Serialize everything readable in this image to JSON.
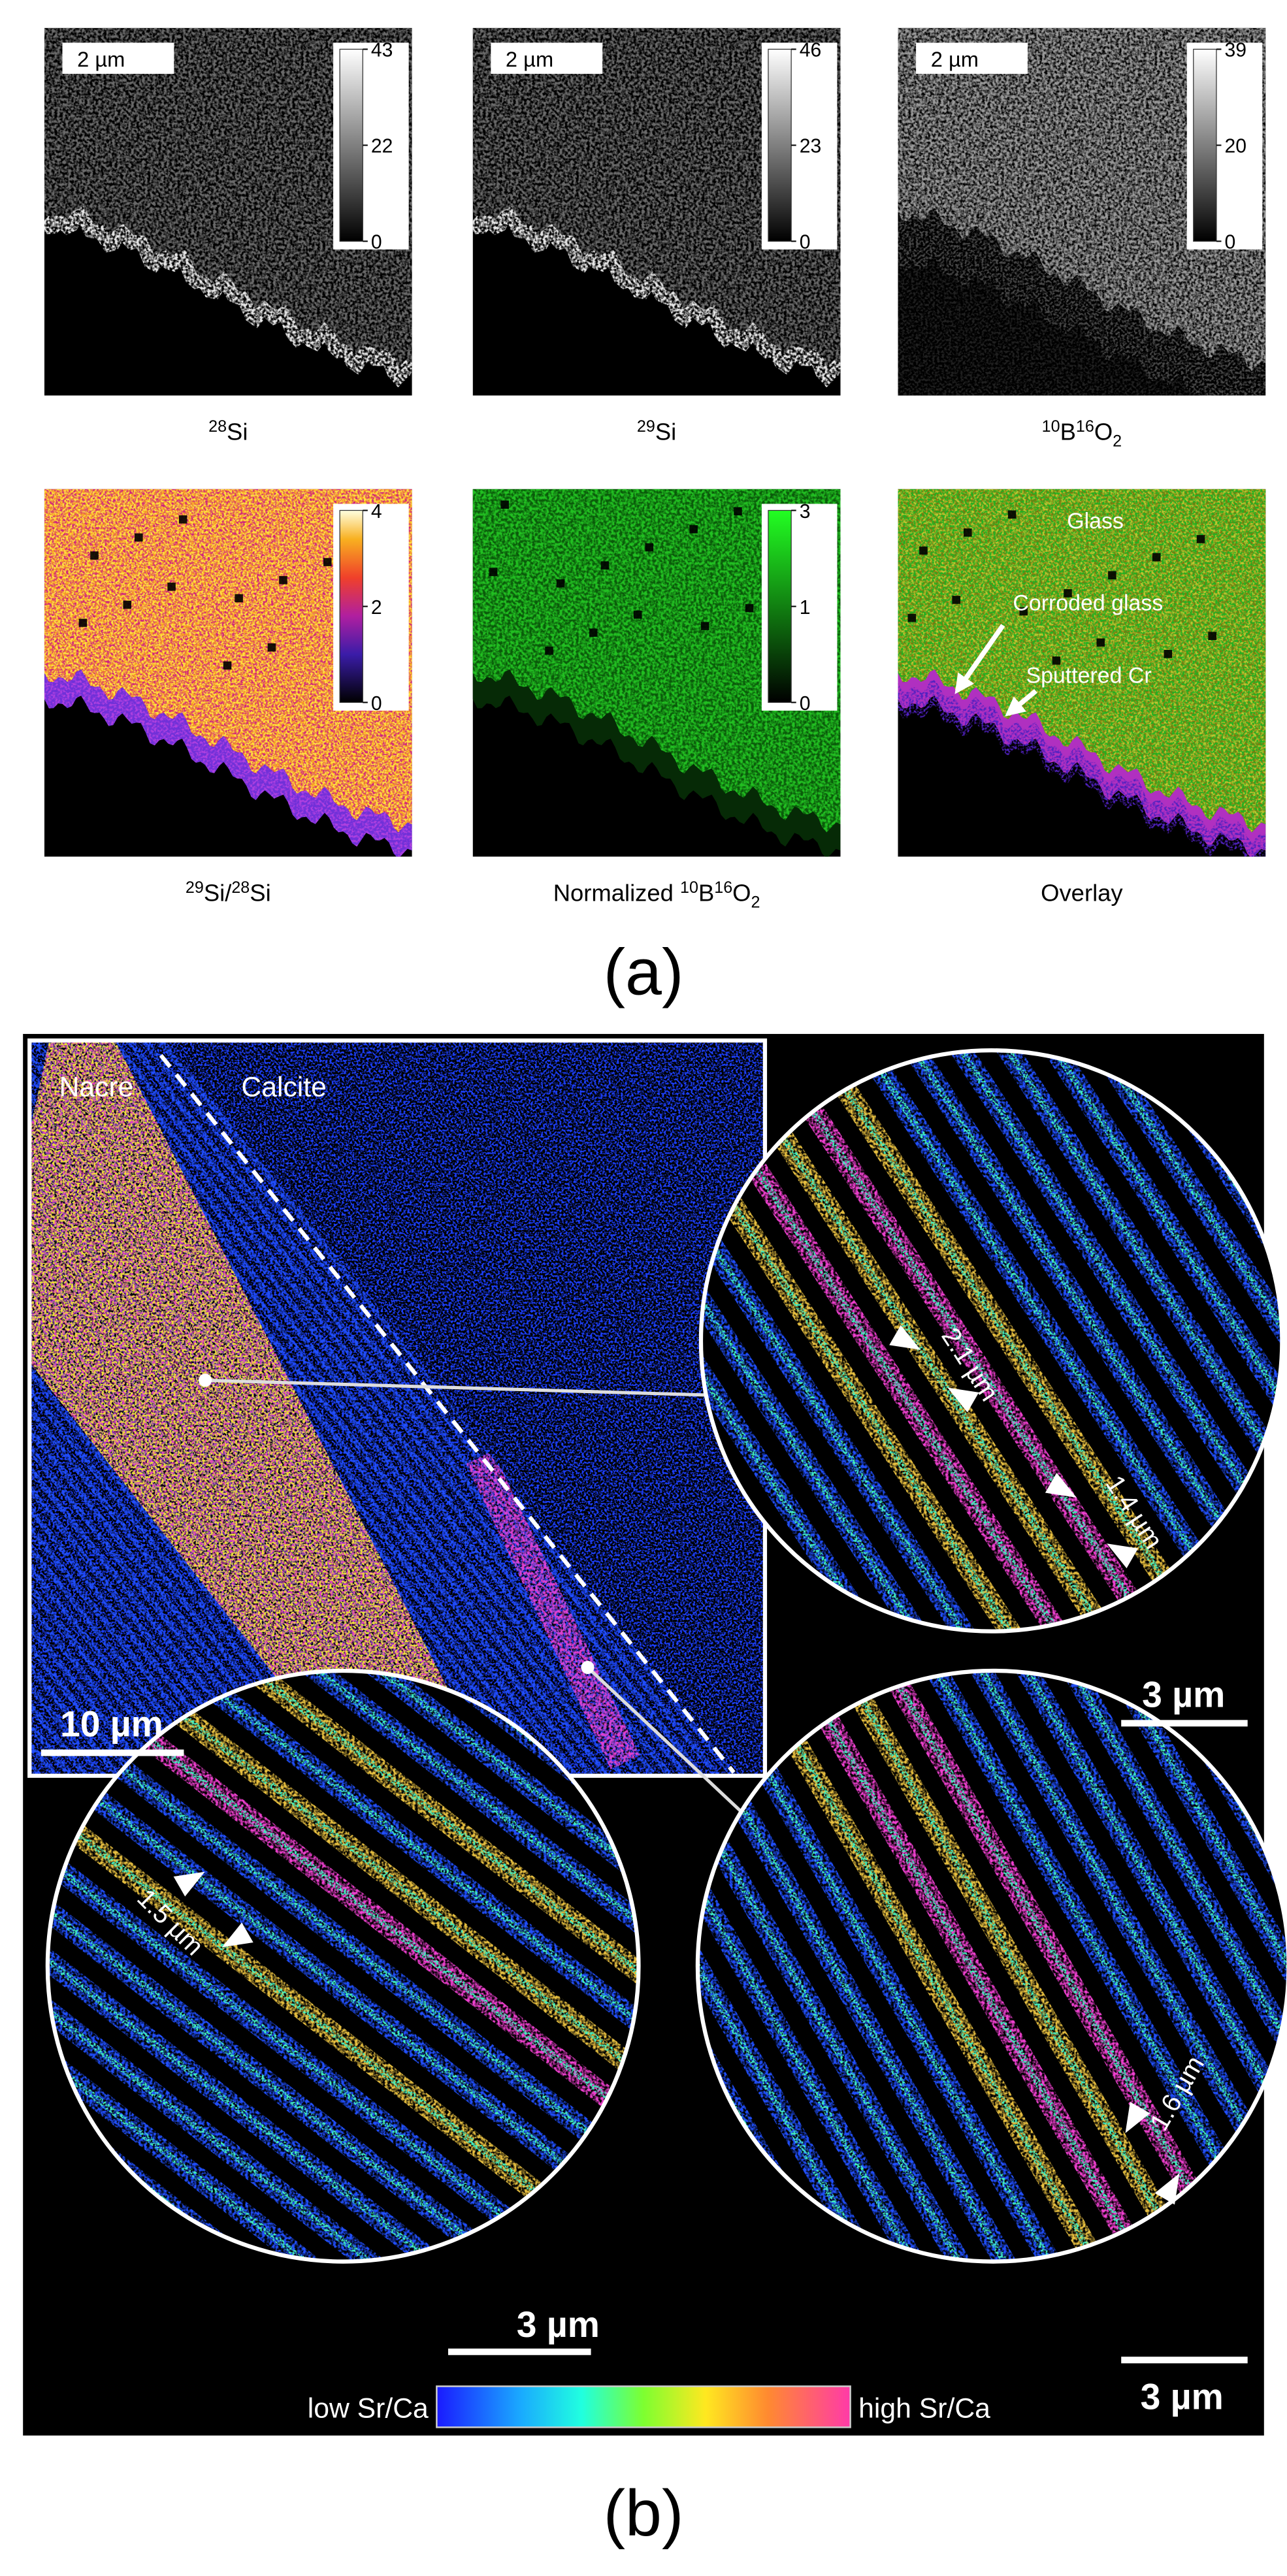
{
  "panel_a": {
    "label": "(a)",
    "tiles": [
      {
        "scale_bar": "2 µm",
        "colorbar_ticks": [
          43,
          22,
          0
        ],
        "caption": [
          {
            "text": "28",
            "pos": "sup"
          },
          {
            "text": "Si",
            "pos": "base"
          }
        ]
      },
      {
        "scale_bar": "2 µm",
        "colorbar_ticks": [
          46,
          23,
          0
        ],
        "caption": [
          {
            "text": "29",
            "pos": "sup"
          },
          {
            "text": "Si",
            "pos": "base"
          }
        ]
      },
      {
        "scale_bar": "2 µm",
        "colorbar_ticks": [
          39,
          20,
          0
        ],
        "caption": [
          {
            "text": "10",
            "pos": "sup"
          },
          {
            "text": "B",
            "pos": "base"
          },
          {
            "text": "16",
            "pos": "sup"
          },
          {
            "text": "O",
            "pos": "base"
          },
          {
            "text": "2",
            "pos": "sub"
          }
        ]
      },
      {
        "colorbar_ticks": [
          4,
          2,
          0
        ],
        "caption": [
          {
            "text": "29",
            "pos": "sup"
          },
          {
            "text": "Si/",
            "pos": "base"
          },
          {
            "text": "28",
            "pos": "sup"
          },
          {
            "text": "Si",
            "pos": "base"
          }
        ]
      },
      {
        "colorbar_ticks": [
          3,
          1,
          0
        ],
        "caption": [
          {
            "text": "Normalized ",
            "pos": "base"
          },
          {
            "text": "10",
            "pos": "sup"
          },
          {
            "text": "B",
            "pos": "base"
          },
          {
            "text": "16",
            "pos": "sup"
          },
          {
            "text": "O",
            "pos": "base"
          },
          {
            "text": "2",
            "pos": "sub"
          }
        ]
      },
      {
        "caption": [
          {
            "text": "Overlay",
            "pos": "base"
          }
        ],
        "annotations": [
          "Glass",
          "Corroded glass",
          "Sputtered Cr"
        ]
      }
    ]
  },
  "panel_b": {
    "label": "(b)",
    "inset_labels": [
      "Nacre",
      "Calcite"
    ],
    "scale_bars": [
      "10 µm",
      "3 µm",
      "3 µm",
      "3 µm"
    ],
    "measurements": [
      "2.1 µm",
      "1.4 µm",
      "1.5 µm",
      "1.6 µm"
    ],
    "colorbar": {
      "low": "low Sr/Ca",
      "high": "high Sr/Ca"
    }
  }
}
